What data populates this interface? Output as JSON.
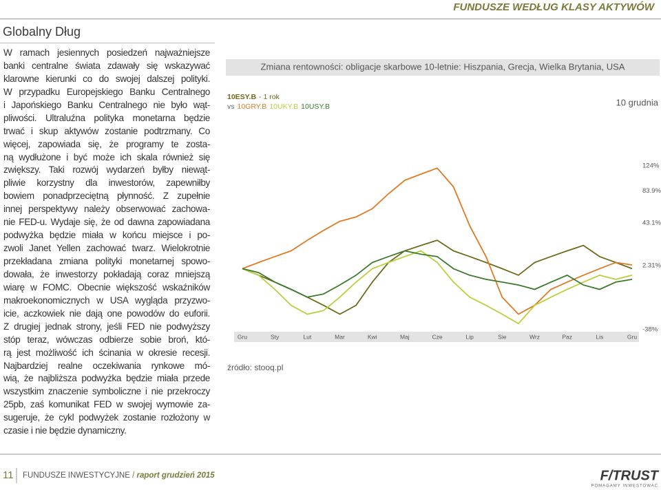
{
  "header": {
    "section": "FUNDUSZE WEDŁUG KLASY AKTYWÓW",
    "title": "Globalny Dług"
  },
  "body": {
    "lines": [
      "W ramach jesiennych posiedzeń najważniejsze",
      "banki centralne świata zdawały się wskazywać",
      "klarowne kierunki co do swojej dalszej polityki.",
      "W przypadku Europejskiego Banku Centralnego",
      "i Japońskiego Banku Centralnego nie było wąt-",
      "pliwości. Ultraluźna polityka monetarna będzie",
      "trwać i skup aktywów zostanie podtrzmany. Co",
      "więcej, zapowiada się, że programy te zosta-",
      "ną wydłużone i być może ich skala również się",
      "zwiększy. Taki rozwój wydarzeń byłby niewąt-",
      "pliwie korzystny dla inwestorów, zapewniłby",
      "bowiem ponadprzeciętną płynność. Z zupełnie",
      "innej perspektywy należy obserwować zachowa-",
      "nie FED-u. Wydaje się, że od dawna zapowiadana",
      "podwyżka będzie miała w końcu miejsce i po-",
      "zwoli Janet Yellen zachować twarz. Wielokrotnie",
      "przekładana zmiana polityki monetarnej spowo-",
      "dowała, że inwestorzy pokładają coraz mniejszą",
      "wiarę w FOMC. Obecnie większość wskaźników",
      "makroekonomicznych w USA wygląda przyzwo-",
      "icie, aczkowiek nie dają one powodów do euforii.",
      "Z drugiej jednak strony, jeśli FED nie podwyższy",
      "stóp teraz, wówczas odbierze sobie broń, któ-",
      "rą jest możliwość ich ścinania w okresie recesji.",
      "Najbardziej realne oczekiwania rynkowe mó-",
      "wią, że najbliższa podwyżka będzie miała przede",
      "wszystkim znaczenie symboliczne i nie przekroczy",
      "25pb, zaś komunikat FED w swojej wymowie za-",
      "sugeruje, że cykl podwyżek zostanie rozłożony w",
      "czasie i nie będzie dynamiczny."
    ]
  },
  "chart_data": {
    "type": "line",
    "title": "Zmiana rentowności: obligacje skarbowe 10-letnie: Hiszpania, Grecja, Wielka Brytania, USA",
    "legend_note": "- 1 rok",
    "legend_vs": "vs",
    "date_label": "10 grudnia",
    "source": "źródło: stooq.pl",
    "log_scale": true,
    "grid": false,
    "categories": [
      "Gru",
      null,
      "Sty",
      null,
      "Lut",
      null,
      "Mar",
      null,
      "Kwi",
      null,
      "Maj",
      null,
      "Cze",
      null,
      "Lip",
      null,
      "Sie",
      null,
      "Wrz",
      null,
      "Paz",
      null,
      "Lis",
      null,
      "Gru"
    ],
    "ylim": [
      -38,
      124
    ],
    "yticks": [
      {
        "value": 124,
        "label": "124%"
      },
      {
        "value": 83.9,
        "label": "83.9%"
      },
      {
        "value": 43.1,
        "label": "43.1%"
      },
      {
        "value": 2.31,
        "label": "2.31%"
      },
      {
        "value": -38,
        "label": "-38%"
      }
    ],
    "series": [
      {
        "name": "10ESY.B",
        "color": "#6e6a1c",
        "values": [
          0,
          -5,
          -10,
          -15,
          -20,
          -25,
          -30,
          -25,
          -10,
          5,
          15,
          20,
          25,
          15,
          10,
          5,
          0,
          -5,
          5,
          10,
          15,
          20,
          10,
          5,
          0
        ]
      },
      {
        "name": "10GRY.B",
        "color": "#e07a22",
        "values": [
          0,
          5,
          10,
          15,
          25,
          35,
          45,
          50,
          60,
          80,
          100,
          110,
          120,
          90,
          40,
          10,
          -20,
          -30,
          -25,
          -15,
          -10,
          -5,
          0,
          5,
          3
        ]
      },
      {
        "name": "10UKY.B",
        "color": "#b9cf3c",
        "values": [
          0,
          -5,
          -15,
          -25,
          -30,
          -28,
          -20,
          -10,
          0,
          5,
          10,
          15,
          5,
          -10,
          -20,
          -25,
          -30,
          -35,
          -25,
          -20,
          -15,
          -10,
          -5,
          -8,
          -5
        ]
      },
      {
        "name": "10USY.B",
        "color": "#3b7a2c",
        "values": [
          0,
          -3,
          -10,
          -15,
          -20,
          -18,
          -12,
          -5,
          5,
          10,
          15,
          12,
          10,
          0,
          -5,
          -8,
          -10,
          -12,
          -15,
          -10,
          -5,
          -12,
          -15,
          -10,
          -8
        ]
      }
    ]
  },
  "footer": {
    "page": "11",
    "publication": "FUNDUSZE INWESTYCYJNE",
    "separator": "/",
    "issue": "raport grudzień 2015",
    "logo": "F/TRUST",
    "tagline": "POMAGAMY INWESTOWAĆ"
  }
}
